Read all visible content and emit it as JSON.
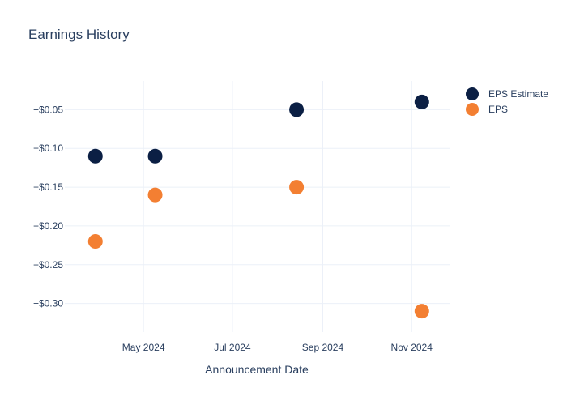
{
  "chart_data": {
    "type": "scatter",
    "title": "Earnings History",
    "xlabel": "Announcement Date",
    "ylabel": "",
    "x_ticks": [
      "May 2024",
      "Jul 2024",
      "Sep 2024",
      "Nov 2024"
    ],
    "x_tick_dates": [
      "2024-05-01",
      "2024-07-01",
      "2024-09-01",
      "2024-11-01"
    ],
    "xlim": [
      "2024-03-08",
      "2024-11-27"
    ],
    "y_ticks": [
      "−$0.05",
      "−$0.10",
      "−$0.15",
      "−$0.20",
      "−$0.25",
      "−$0.30"
    ],
    "y_tick_values": [
      -0.05,
      -0.1,
      -0.15,
      -0.2,
      -0.25,
      -0.3
    ],
    "ylim": [
      -0.337,
      -0.013
    ],
    "grid": true,
    "legend_position": "top-right",
    "series": [
      {
        "name": "EPS Estimate",
        "color": "#0b1f44",
        "points": [
          {
            "x": "2024-03-29",
            "y": -0.11
          },
          {
            "x": "2024-05-09",
            "y": -0.11
          },
          {
            "x": "2024-08-14",
            "y": -0.05
          },
          {
            "x": "2024-11-08",
            "y": -0.04
          }
        ]
      },
      {
        "name": "EPS",
        "color": "#f37f32",
        "points": [
          {
            "x": "2024-03-29",
            "y": -0.22
          },
          {
            "x": "2024-05-09",
            "y": -0.16
          },
          {
            "x": "2024-08-14",
            "y": -0.15
          },
          {
            "x": "2024-11-08",
            "y": -0.31
          }
        ]
      }
    ]
  }
}
